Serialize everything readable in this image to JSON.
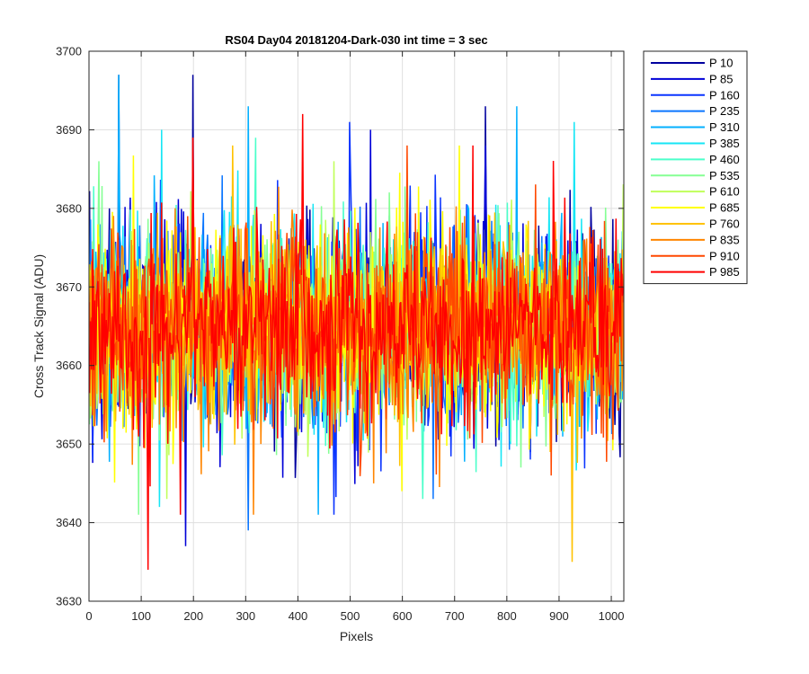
{
  "chart_data": {
    "type": "line",
    "title": "RS04 Day04 20181204-Dark-030 int time = 3 sec",
    "xlabel": "Pixels",
    "ylabel": "Cross Track Signal (ADU)",
    "xlim": [
      0,
      1024
    ],
    "ylim": [
      3630,
      3700
    ],
    "xticks": [
      0,
      100,
      200,
      300,
      400,
      500,
      600,
      700,
      800,
      900,
      1000
    ],
    "yticks": [
      3630,
      3640,
      3650,
      3660,
      3670,
      3680,
      3690,
      3700
    ],
    "grid": true,
    "legend_position": "outside-top-right",
    "x_range": [
      1,
      1024
    ],
    "noise_mean": 3665,
    "noise_band": [
      3643,
      3687
    ],
    "series": [
      {
        "name": "P 10",
        "color": "#00009f",
        "spikes": [
          [
            57,
            3697
          ],
          [
            200,
            3697
          ],
          [
            40,
            3680
          ],
          [
            760,
            3693
          ]
        ]
      },
      {
        "name": "P 85",
        "color": "#0000d7",
        "spikes": [
          [
            185,
            3637
          ],
          [
            540,
            3690
          ],
          [
            760,
            3688
          ]
        ]
      },
      {
        "name": "P 160",
        "color": "#0b35ff",
        "spikes": [
          [
            500,
            3691
          ],
          [
            470,
            3641
          ]
        ]
      },
      {
        "name": "P 235",
        "color": "#0b76ff",
        "spikes": [
          [
            305,
            3639
          ],
          [
            660,
            3643
          ]
        ]
      },
      {
        "name": "P 310",
        "color": "#04b0ff",
        "spikes": [
          [
            57,
            3697
          ],
          [
            305,
            3693
          ],
          [
            820,
            3693
          ],
          [
            440,
            3641
          ]
        ]
      },
      {
        "name": "P 385",
        "color": "#16e6f5",
        "spikes": [
          [
            140,
            3690
          ],
          [
            930,
            3691
          ],
          [
            135,
            3642
          ]
        ]
      },
      {
        "name": "P 460",
        "color": "#4bffca",
        "spikes": [
          [
            320,
            3689
          ],
          [
            640,
            3643
          ]
        ]
      },
      {
        "name": "P 535",
        "color": "#85ff94",
        "spikes": [
          [
            20,
            3686
          ],
          [
            95,
            3641
          ]
        ]
      },
      {
        "name": "P 610",
        "color": "#c0ff5a",
        "spikes": [
          [
            470,
            3686
          ],
          [
            150,
            3643
          ]
        ]
      },
      {
        "name": "P 685",
        "color": "#ffff00",
        "spikes": [
          [
            710,
            3688
          ],
          [
            600,
            3644
          ]
        ]
      },
      {
        "name": "P 760",
        "color": "#ffc200",
        "spikes": [
          [
            925,
            3635
          ],
          [
            275,
            3688
          ]
        ]
      },
      {
        "name": "P 835",
        "color": "#ff8500",
        "spikes": [
          [
            315,
            3641
          ],
          [
            545,
            3645
          ]
        ]
      },
      {
        "name": "P 910",
        "color": "#ff4800",
        "spikes": [
          [
            200,
            3689
          ],
          [
            610,
            3688
          ],
          [
            885,
            3646
          ]
        ]
      },
      {
        "name": "P 985",
        "color": "#ff0000",
        "spikes": [
          [
            113,
            3634
          ],
          [
            410,
            3692
          ],
          [
            175,
            3641
          ],
          [
            200,
            3689
          ],
          [
            735,
            3688
          ],
          [
            50,
            3672
          ]
        ]
      }
    ]
  }
}
